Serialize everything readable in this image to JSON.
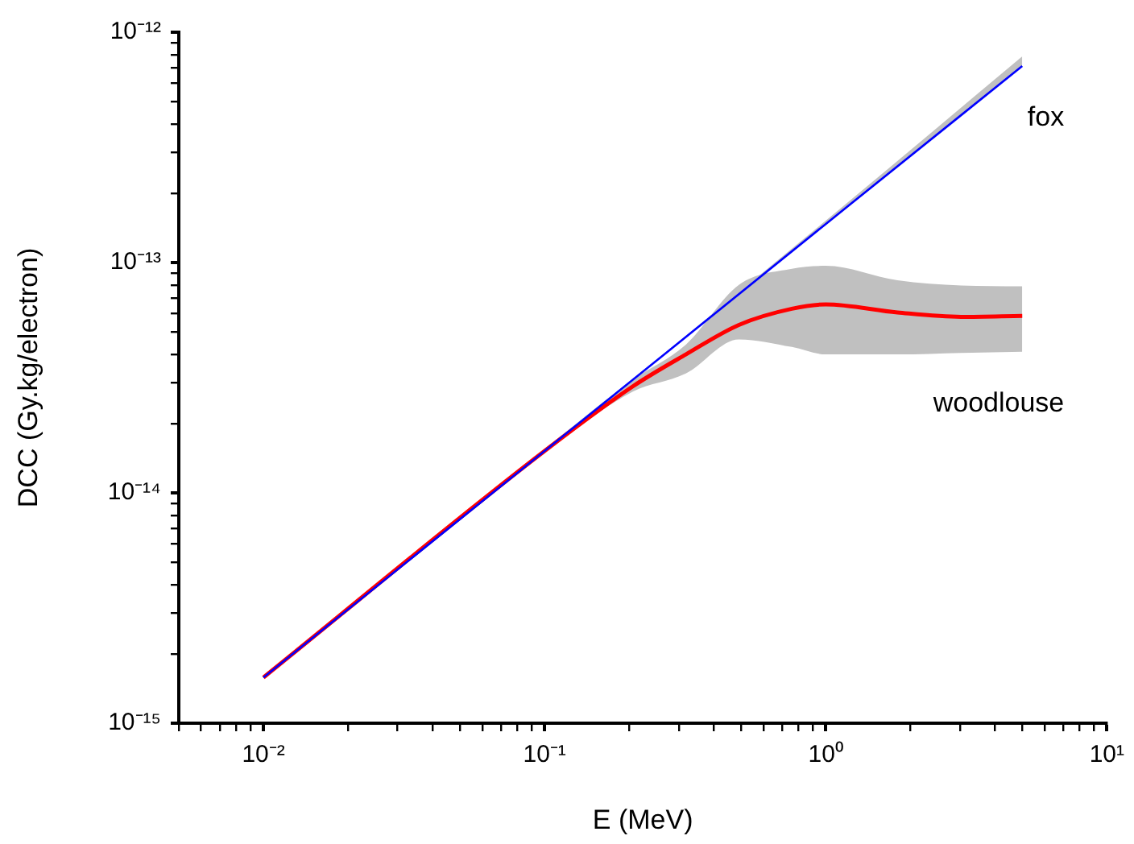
{
  "chart_data": {
    "type": "line",
    "xlabel": "E (MeV)",
    "ylabel": "DCC (Gy.kg/electron)",
    "log": "xy",
    "xlim": [
      0.005,
      10
    ],
    "ylim": [
      1e-15,
      1e-12
    ],
    "xticks": [
      {
        "value": 0.005,
        "label": null
      },
      {
        "value": 0.006,
        "label": null
      },
      {
        "value": 0.007,
        "label": null
      },
      {
        "value": 0.008,
        "label": null
      },
      {
        "value": 0.009,
        "label": null
      },
      {
        "value": 0.01,
        "label": "10⁻²"
      },
      {
        "value": 0.02,
        "label": null
      },
      {
        "value": 0.03,
        "label": null
      },
      {
        "value": 0.04,
        "label": null
      },
      {
        "value": 0.05,
        "label": null
      },
      {
        "value": 0.06,
        "label": null
      },
      {
        "value": 0.07,
        "label": null
      },
      {
        "value": 0.08,
        "label": null
      },
      {
        "value": 0.09,
        "label": null
      },
      {
        "value": 0.1,
        "label": "10⁻¹"
      },
      {
        "value": 0.2,
        "label": null
      },
      {
        "value": 0.3,
        "label": null
      },
      {
        "value": 0.4,
        "label": null
      },
      {
        "value": 0.5,
        "label": null
      },
      {
        "value": 0.6,
        "label": null
      },
      {
        "value": 0.7,
        "label": null
      },
      {
        "value": 0.8,
        "label": null
      },
      {
        "value": 0.9,
        "label": null
      },
      {
        "value": 1,
        "label": "10⁰"
      },
      {
        "value": 2,
        "label": null
      },
      {
        "value": 3,
        "label": null
      },
      {
        "value": 4,
        "label": null
      },
      {
        "value": 5,
        "label": null
      },
      {
        "value": 6,
        "label": null
      },
      {
        "value": 7,
        "label": null
      },
      {
        "value": 8,
        "label": null
      },
      {
        "value": 9,
        "label": null
      },
      {
        "value": 10,
        "label": "10¹"
      }
    ],
    "yticks": [
      {
        "value": 1e-15,
        "label": "10⁻¹⁵"
      },
      {
        "value": 2e-15,
        "label": null
      },
      {
        "value": 3e-15,
        "label": null
      },
      {
        "value": 4e-15,
        "label": null
      },
      {
        "value": 5e-15,
        "label": null
      },
      {
        "value": 6e-15,
        "label": null
      },
      {
        "value": 7e-15,
        "label": null
      },
      {
        "value": 8e-15,
        "label": null
      },
      {
        "value": 9e-15,
        "label": null
      },
      {
        "value": 1e-14,
        "label": "10⁻¹⁴"
      },
      {
        "value": 2e-14,
        "label": null
      },
      {
        "value": 3e-14,
        "label": null
      },
      {
        "value": 4e-14,
        "label": null
      },
      {
        "value": 5e-14,
        "label": null
      },
      {
        "value": 6e-14,
        "label": null
      },
      {
        "value": 7e-14,
        "label": null
      },
      {
        "value": 8e-14,
        "label": null
      },
      {
        "value": 9e-14,
        "label": null
      },
      {
        "value": 1e-13,
        "label": "10⁻¹³"
      },
      {
        "value": 2e-13,
        "label": null
      },
      {
        "value": 3e-13,
        "label": null
      },
      {
        "value": 4e-13,
        "label": null
      },
      {
        "value": 5e-13,
        "label": null
      },
      {
        "value": 6e-13,
        "label": null
      },
      {
        "value": 7e-13,
        "label": null
      },
      {
        "value": 8e-13,
        "label": null
      },
      {
        "value": 9e-13,
        "label": null
      },
      {
        "value": 1e-12,
        "label": "10⁻¹²"
      }
    ],
    "series": [
      {
        "name": "woodlouse",
        "color": "#ff0000",
        "x": [
          0.01,
          0.1,
          0.206,
          0.318,
          0.491,
          0.758,
          1,
          1.8,
          3.03,
          5
        ],
        "values": [
          1.58e-15,
          1.52e-14,
          2.9e-14,
          3.99e-14,
          5.36e-14,
          6.3e-14,
          6.58e-14,
          6.07e-14,
          5.81e-14,
          5.87e-14
        ],
        "lower": [
          1.58e-15,
          1.5e-14,
          2.75e-14,
          3.3e-14,
          4.64e-14,
          4.3e-14,
          3.99e-14,
          3.99e-14,
          4.05e-14,
          4.1e-14
        ],
        "upper": [
          1.58e-15,
          1.55e-14,
          3.1e-14,
          4.4e-14,
          8e-14,
          9.4e-14,
          9.68e-14,
          8.37e-14,
          7.95e-14,
          7.88e-14
        ]
      },
      {
        "name": "fox",
        "color": "#0000ff",
        "x": [
          0.01,
          0.1,
          1,
          5
        ],
        "values": [
          1.58e-15,
          1.52e-14,
          1.47e-13,
          7.13e-13
        ],
        "lower": [
          1.58e-15,
          1.52e-14,
          1.47e-13,
          7.13e-13
        ],
        "upper": [
          1.58e-15,
          1.52e-14,
          1.52e-13,
          7.86e-13
        ]
      }
    ]
  }
}
